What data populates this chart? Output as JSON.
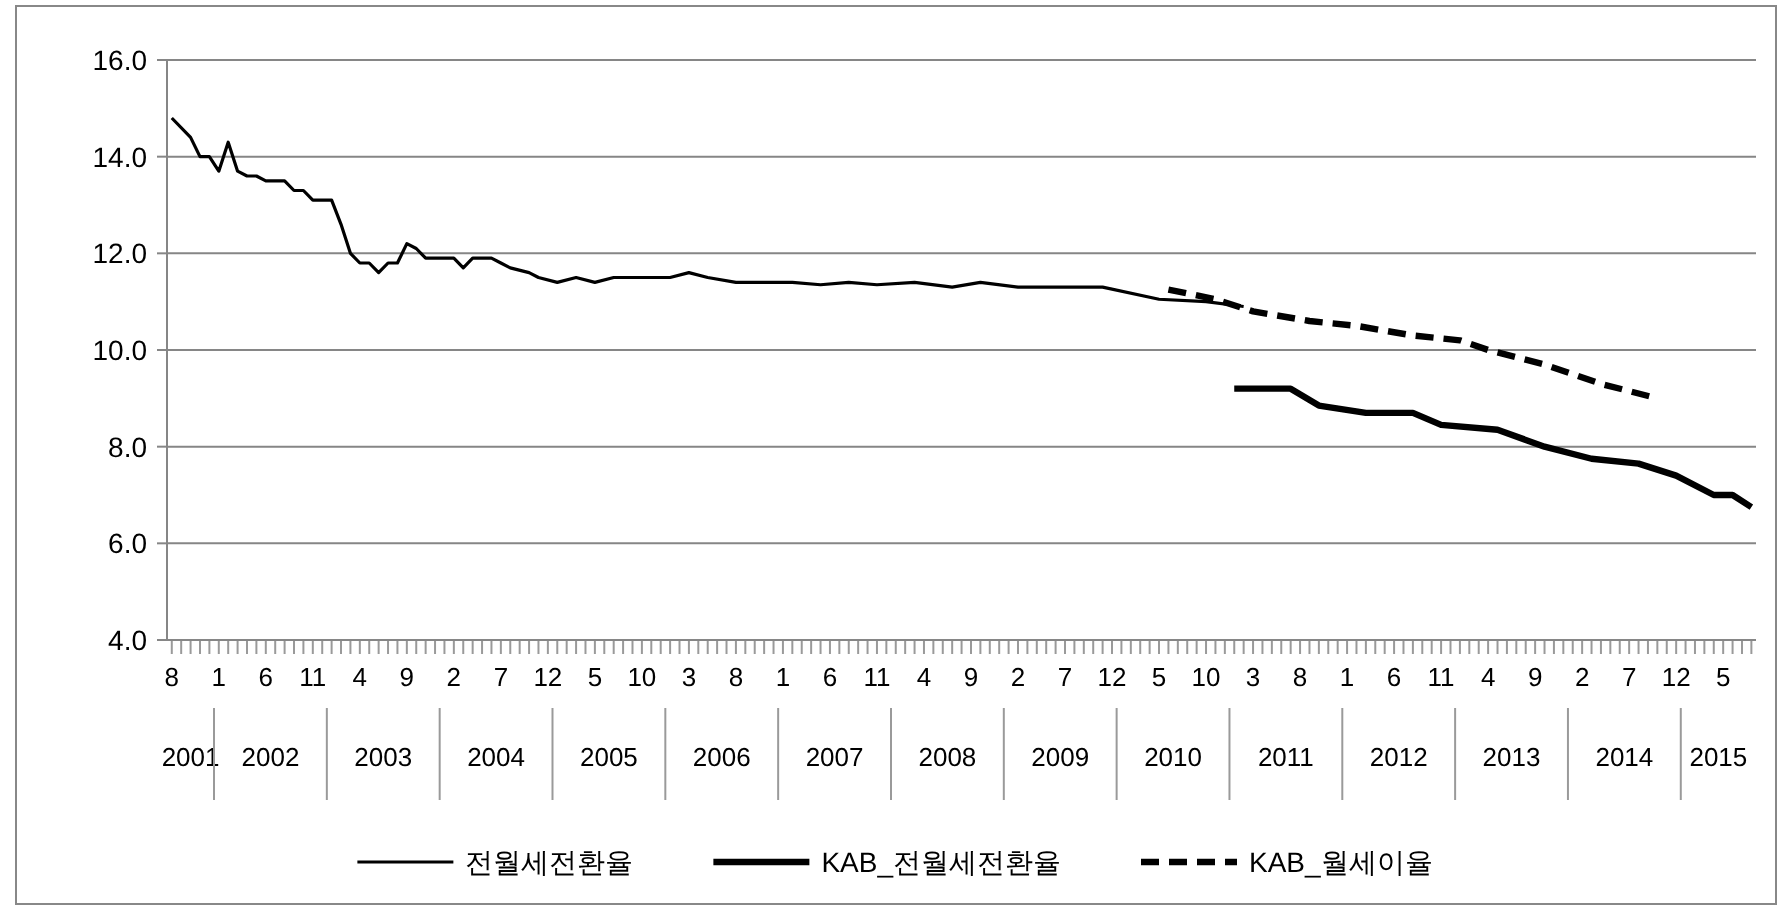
{
  "chart_data": {
    "type": "line",
    "ylim": [
      4,
      16
    ],
    "yticks": [
      {
        "value": 4,
        "label": "4.0"
      },
      {
        "value": 6,
        "label": "6.0"
      },
      {
        "value": 8,
        "label": "8.0"
      },
      {
        "value": 10,
        "label": "10.0"
      },
      {
        "value": 12,
        "label": "12.0"
      },
      {
        "value": 14,
        "label": "14.0"
      },
      {
        "value": 16,
        "label": "16.0"
      }
    ],
    "xlim": [
      "2001-07-16",
      "2015-08-16"
    ],
    "xticks": [
      {
        "value": "2001-08",
        "label": "8"
      },
      {
        "value": "2001-09",
        "label": null
      },
      {
        "value": "2001-10",
        "label": null
      },
      {
        "value": "2001-11",
        "label": null
      },
      {
        "value": "2001-12",
        "label": null
      },
      {
        "value": "2002-01",
        "label": "1"
      },
      {
        "value": "2002-02",
        "label": null
      },
      {
        "value": "2002-03",
        "label": null
      },
      {
        "value": "2002-04",
        "label": null
      },
      {
        "value": "2002-05",
        "label": null
      },
      {
        "value": "2002-06",
        "label": "6"
      },
      {
        "value": "2002-07",
        "label": null
      },
      {
        "value": "2002-08",
        "label": null
      },
      {
        "value": "2002-09",
        "label": null
      },
      {
        "value": "2002-10",
        "label": null
      },
      {
        "value": "2002-11",
        "label": "11"
      },
      {
        "value": "2002-12",
        "label": null
      },
      {
        "value": "2003-01",
        "label": null
      },
      {
        "value": "2003-02",
        "label": null
      },
      {
        "value": "2003-03",
        "label": null
      },
      {
        "value": "2003-04",
        "label": "4"
      },
      {
        "value": "2003-05",
        "label": null
      },
      {
        "value": "2003-06",
        "label": null
      },
      {
        "value": "2003-07",
        "label": null
      },
      {
        "value": "2003-08",
        "label": null
      },
      {
        "value": "2003-09",
        "label": "9"
      },
      {
        "value": "2003-10",
        "label": null
      },
      {
        "value": "2003-11",
        "label": null
      },
      {
        "value": "2003-12",
        "label": null
      },
      {
        "value": "2004-01",
        "label": null
      },
      {
        "value": "2004-02",
        "label": "2"
      },
      {
        "value": "2004-03",
        "label": null
      },
      {
        "value": "2004-04",
        "label": null
      },
      {
        "value": "2004-05",
        "label": null
      },
      {
        "value": "2004-06",
        "label": null
      },
      {
        "value": "2004-07",
        "label": "7"
      },
      {
        "value": "2004-08",
        "label": null
      },
      {
        "value": "2004-09",
        "label": null
      },
      {
        "value": "2004-10",
        "label": null
      },
      {
        "value": "2004-11",
        "label": null
      },
      {
        "value": "2004-12",
        "label": "12"
      },
      {
        "value": "2005-01",
        "label": null
      },
      {
        "value": "2005-02",
        "label": null
      },
      {
        "value": "2005-03",
        "label": null
      },
      {
        "value": "2005-04",
        "label": null
      },
      {
        "value": "2005-05",
        "label": "5"
      },
      {
        "value": "2005-06",
        "label": null
      },
      {
        "value": "2005-07",
        "label": null
      },
      {
        "value": "2005-08",
        "label": null
      },
      {
        "value": "2005-09",
        "label": null
      },
      {
        "value": "2005-10",
        "label": "10"
      },
      {
        "value": "2005-11",
        "label": null
      },
      {
        "value": "2005-12",
        "label": null
      },
      {
        "value": "2006-01",
        "label": null
      },
      {
        "value": "2006-02",
        "label": null
      },
      {
        "value": "2006-03",
        "label": "3"
      },
      {
        "value": "2006-04",
        "label": null
      },
      {
        "value": "2006-05",
        "label": null
      },
      {
        "value": "2006-06",
        "label": null
      },
      {
        "value": "2006-07",
        "label": null
      },
      {
        "value": "2006-08",
        "label": "8"
      },
      {
        "value": "2006-09",
        "label": null
      },
      {
        "value": "2006-10",
        "label": null
      },
      {
        "value": "2006-11",
        "label": null
      },
      {
        "value": "2006-12",
        "label": null
      },
      {
        "value": "2007-01",
        "label": "1"
      },
      {
        "value": "2007-02",
        "label": null
      },
      {
        "value": "2007-03",
        "label": null
      },
      {
        "value": "2007-04",
        "label": null
      },
      {
        "value": "2007-05",
        "label": null
      },
      {
        "value": "2007-06",
        "label": "6"
      },
      {
        "value": "2007-07",
        "label": null
      },
      {
        "value": "2007-08",
        "label": null
      },
      {
        "value": "2007-09",
        "label": null
      },
      {
        "value": "2007-10",
        "label": null
      },
      {
        "value": "2007-11",
        "label": "11"
      },
      {
        "value": "2007-12",
        "label": null
      },
      {
        "value": "2008-01",
        "label": null
      },
      {
        "value": "2008-02",
        "label": null
      },
      {
        "value": "2008-03",
        "label": null
      },
      {
        "value": "2008-04",
        "label": "4"
      },
      {
        "value": "2008-05",
        "label": null
      },
      {
        "value": "2008-06",
        "label": null
      },
      {
        "value": "2008-07",
        "label": null
      },
      {
        "value": "2008-08",
        "label": null
      },
      {
        "value": "2008-09",
        "label": "9"
      },
      {
        "value": "2008-10",
        "label": null
      },
      {
        "value": "2008-11",
        "label": null
      },
      {
        "value": "2008-12",
        "label": null
      },
      {
        "value": "2009-01",
        "label": null
      },
      {
        "value": "2009-02",
        "label": "2"
      },
      {
        "value": "2009-03",
        "label": null
      },
      {
        "value": "2009-04",
        "label": null
      },
      {
        "value": "2009-05",
        "label": null
      },
      {
        "value": "2009-06",
        "label": null
      },
      {
        "value": "2009-07",
        "label": "7"
      },
      {
        "value": "2009-08",
        "label": null
      },
      {
        "value": "2009-09",
        "label": null
      },
      {
        "value": "2009-10",
        "label": null
      },
      {
        "value": "2009-11",
        "label": null
      },
      {
        "value": "2009-12",
        "label": "12"
      },
      {
        "value": "2010-01",
        "label": null
      },
      {
        "value": "2010-02",
        "label": null
      },
      {
        "value": "2010-03",
        "label": null
      },
      {
        "value": "2010-04",
        "label": null
      },
      {
        "value": "2010-05",
        "label": "5"
      },
      {
        "value": "2010-06",
        "label": null
      },
      {
        "value": "2010-07",
        "label": null
      },
      {
        "value": "2010-08",
        "label": null
      },
      {
        "value": "2010-09",
        "label": null
      },
      {
        "value": "2010-10",
        "label": "10"
      },
      {
        "value": "2010-11",
        "label": null
      },
      {
        "value": "2010-12",
        "label": null
      },
      {
        "value": "2011-01",
        "label": null
      },
      {
        "value": "2011-02",
        "label": null
      },
      {
        "value": "2011-03",
        "label": "3"
      },
      {
        "value": "2011-04",
        "label": null
      },
      {
        "value": "2011-05",
        "label": null
      },
      {
        "value": "2011-06",
        "label": null
      },
      {
        "value": "2011-07",
        "label": null
      },
      {
        "value": "2011-08",
        "label": "8"
      },
      {
        "value": "2011-09",
        "label": null
      },
      {
        "value": "2011-10",
        "label": null
      },
      {
        "value": "2011-11",
        "label": null
      },
      {
        "value": "2011-12",
        "label": null
      },
      {
        "value": "2012-01",
        "label": "1"
      },
      {
        "value": "2012-02",
        "label": null
      },
      {
        "value": "2012-03",
        "label": null
      },
      {
        "value": "2012-04",
        "label": null
      },
      {
        "value": "2012-05",
        "label": null
      },
      {
        "value": "2012-06",
        "label": "6"
      },
      {
        "value": "2012-07",
        "label": null
      },
      {
        "value": "2012-08",
        "label": null
      },
      {
        "value": "2012-09",
        "label": null
      },
      {
        "value": "2012-10",
        "label": null
      },
      {
        "value": "2012-11",
        "label": "11"
      },
      {
        "value": "2012-12",
        "label": null
      },
      {
        "value": "2013-01",
        "label": null
      },
      {
        "value": "2013-02",
        "label": null
      },
      {
        "value": "2013-03",
        "label": null
      },
      {
        "value": "2013-04",
        "label": "4"
      },
      {
        "value": "2013-05",
        "label": null
      },
      {
        "value": "2013-06",
        "label": null
      },
      {
        "value": "2013-07",
        "label": null
      },
      {
        "value": "2013-08",
        "label": null
      },
      {
        "value": "2013-09",
        "label": "9"
      },
      {
        "value": "2013-10",
        "label": null
      },
      {
        "value": "2013-11",
        "label": null
      },
      {
        "value": "2013-12",
        "label": null
      },
      {
        "value": "2014-01",
        "label": null
      },
      {
        "value": "2014-02",
        "label": "2"
      },
      {
        "value": "2014-03",
        "label": null
      },
      {
        "value": "2014-04",
        "label": null
      },
      {
        "value": "2014-05",
        "label": null
      },
      {
        "value": "2014-06",
        "label": null
      },
      {
        "value": "2014-07",
        "label": "7"
      },
      {
        "value": "2014-08",
        "label": null
      },
      {
        "value": "2014-09",
        "label": null
      },
      {
        "value": "2014-10",
        "label": null
      },
      {
        "value": "2014-11",
        "label": null
      },
      {
        "value": "2014-12",
        "label": "12"
      },
      {
        "value": "2015-01",
        "label": null
      },
      {
        "value": "2015-02",
        "label": null
      },
      {
        "value": "2015-03",
        "label": null
      },
      {
        "value": "2015-04",
        "label": null
      },
      {
        "value": "2015-05",
        "label": "5"
      },
      {
        "value": "2015-06",
        "label": null
      },
      {
        "value": "2015-07",
        "label": null
      },
      {
        "value": "2015-08",
        "label": null
      }
    ],
    "x2lim": [
      "2001-07-16",
      "2015-08-16"
    ],
    "x2ticks": [
      {
        "value": "2001-10",
        "label": "2001"
      },
      {
        "value": "2001-12-16",
        "label": null
      },
      {
        "value": "2002-06-16",
        "label": "2002"
      },
      {
        "value": "2002-12-16",
        "label": null
      },
      {
        "value": "2003-06-16",
        "label": "2003"
      },
      {
        "value": "2003-12-16",
        "label": null
      },
      {
        "value": "2004-06-16",
        "label": "2004"
      },
      {
        "value": "2004-12-16",
        "label": null
      },
      {
        "value": "2005-06-16",
        "label": "2005"
      },
      {
        "value": "2005-12-16",
        "label": null
      },
      {
        "value": "2006-06-16",
        "label": "2006"
      },
      {
        "value": "2006-12-16",
        "label": null
      },
      {
        "value": "2007-06-16",
        "label": "2007"
      },
      {
        "value": "2007-12-16",
        "label": null
      },
      {
        "value": "2008-06-16",
        "label": "2008"
      },
      {
        "value": "2008-12-16",
        "label": null
      },
      {
        "value": "2009-06-16",
        "label": "2009"
      },
      {
        "value": "2009-12-16",
        "label": null
      },
      {
        "value": "2010-06-16",
        "label": "2010"
      },
      {
        "value": "2010-12-16",
        "label": null
      },
      {
        "value": "2011-06-16",
        "label": "2011"
      },
      {
        "value": "2011-12-16",
        "label": null
      },
      {
        "value": "2012-06-16",
        "label": "2012"
      },
      {
        "value": "2012-12-16",
        "label": null
      },
      {
        "value": "2013-06-16",
        "label": "2013"
      },
      {
        "value": "2013-12-16",
        "label": null
      },
      {
        "value": "2014-06-16",
        "label": "2014"
      },
      {
        "value": "2014-12-16",
        "label": null
      },
      {
        "value": "2015-04-16",
        "label": "2015"
      }
    ],
    "grid": "y",
    "legend": "bottom",
    "series": [
      {
        "name": "전월세전환율",
        "color": "#000000",
        "line_style": "solid",
        "x": [
          "2001-08",
          "2001-10",
          "2001-11",
          "2001-12",
          "2002-01",
          "2002-02",
          "2002-03",
          "2002-04",
          "2002-05",
          "2002-06",
          "2002-08",
          "2002-09",
          "2002-10",
          "2002-11",
          "2003-01",
          "2003-02",
          "2003-03",
          "2003-04",
          "2003-05",
          "2003-06",
          "2003-07",
          "2003-08",
          "2003-09",
          "2003-10",
          "2003-11",
          "2004-02",
          "2004-03",
          "2004-04",
          "2004-06",
          "2004-07",
          "2004-08",
          "2004-10",
          "2004-11",
          "2005-01",
          "2005-03",
          "2005-05",
          "2005-07",
          "2005-09",
          "2005-11",
          "2006-01",
          "2006-03",
          "2006-05",
          "2006-08",
          "2006-11",
          "2007-02",
          "2007-05",
          "2007-08",
          "2007-11",
          "2008-03",
          "2008-07",
          "2008-10",
          "2009-02",
          "2009-08",
          "2009-11",
          "2010-05",
          "2010-10",
          "2011-02"
        ],
        "values": [
          14.8,
          14.4,
          14.0,
          14.0,
          13.7,
          14.3,
          13.7,
          13.6,
          13.6,
          13.5,
          13.5,
          13.3,
          13.3,
          13.1,
          13.1,
          12.6,
          12.0,
          11.8,
          11.8,
          11.6,
          11.8,
          11.8,
          12.2,
          12.1,
          11.9,
          11.9,
          11.7,
          11.9,
          11.9,
          11.8,
          11.7,
          11.6,
          11.5,
          11.4,
          11.5,
          11.4,
          11.5,
          11.5,
          11.5,
          11.5,
          11.6,
          11.5,
          11.4,
          11.4,
          11.4,
          11.35,
          11.4,
          11.35,
          11.4,
          11.3,
          11.4,
          11.3,
          11.3,
          11.3,
          11.05,
          11.0,
          10.9
        ]
      },
      {
        "name": "KAB_전월세전환율",
        "color": "#000000",
        "line_style": "solid",
        "x": [
          "2011-01",
          "2011-07",
          "2011-10",
          "2012-03",
          "2012-08",
          "2012-11",
          "2013-05",
          "2013-10",
          "2014-03",
          "2014-08",
          "2014-12",
          "2015-04",
          "2015-06",
          "2015-08"
        ],
        "values": [
          9.2,
          9.2,
          8.85,
          8.7,
          8.7,
          8.45,
          8.35,
          8.0,
          7.75,
          7.65,
          7.4,
          7.0,
          7.0,
          6.75
        ]
      },
      {
        "name": "KAB_월세이율",
        "color": "#000000",
        "line_style": "dashed",
        "x": [
          "2010-06",
          "2010-11",
          "2011-03",
          "2011-09",
          "2012-02",
          "2012-08",
          "2013-01",
          "2013-04",
          "2013-10",
          "2014-04",
          "2014-10"
        ],
        "values": [
          11.25,
          11.05,
          10.8,
          10.6,
          10.5,
          10.3,
          10.2,
          10.0,
          9.7,
          9.3,
          9.0
        ]
      }
    ]
  }
}
